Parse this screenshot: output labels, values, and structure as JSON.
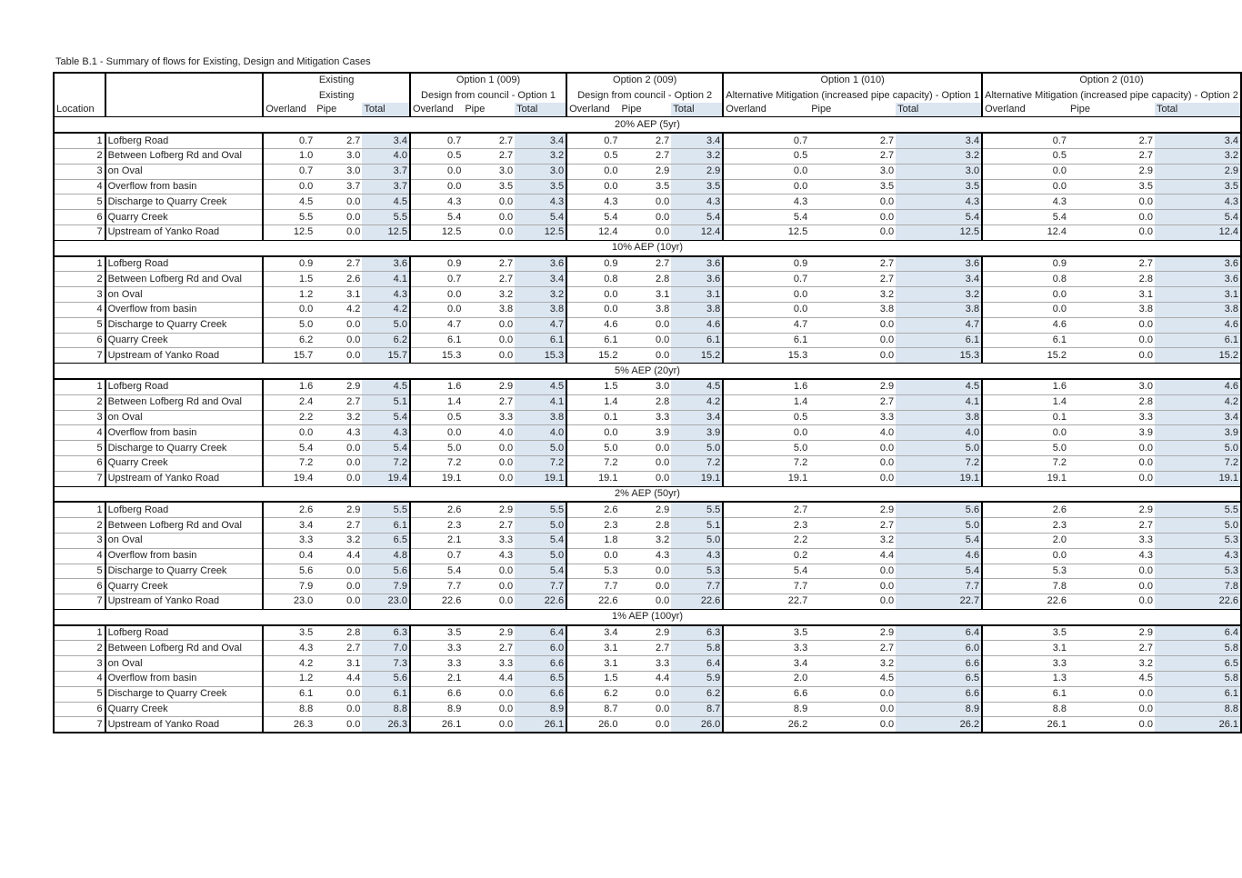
{
  "caption": "Table B.1 - Summary of flows for Existing, Design and Mitigation Cases",
  "header": {
    "location_label": "Location",
    "groups": [
      {
        "title": "Existing",
        "subtitle": "Existing"
      },
      {
        "title": "Option 1 (009)",
        "subtitle": "Design from council - Option 1"
      },
      {
        "title": "Option 2 (009)",
        "subtitle": "Design from council - Option 2"
      },
      {
        "title": "Option 1 (010)",
        "subtitle": "Alternative Mitigation (increased pipe capacity) - Option 1"
      },
      {
        "title": "Option 2 (010)",
        "subtitle": "Alternative Mitigation (increased pipe capacity) - Option 2"
      }
    ],
    "sub_columns": [
      "Overland",
      "Pipe",
      "Total"
    ]
  },
  "sections": [
    {
      "title": "20% AEP (5yr)",
      "rows": [
        {
          "id": "1",
          "name": "Lofberg Road",
          "values": [
            "0.7",
            "2.7",
            "3.4",
            "0.7",
            "2.7",
            "3.4",
            "0.7",
            "2.7",
            "3.4",
            "0.7",
            "2.7",
            "3.4",
            "0.7",
            "2.7",
            "3.4"
          ]
        },
        {
          "id": "2",
          "name": "Between Lofberg Rd and Oval",
          "values": [
            "1.0",
            "3.0",
            "4.0",
            "0.5",
            "2.7",
            "3.2",
            "0.5",
            "2.7",
            "3.2",
            "0.5",
            "2.7",
            "3.2",
            "0.5",
            "2.7",
            "3.2"
          ]
        },
        {
          "id": "3",
          "name": "on Oval",
          "values": [
            "0.7",
            "3.0",
            "3.7",
            "0.0",
            "3.0",
            "3.0",
            "0.0",
            "2.9",
            "2.9",
            "0.0",
            "3.0",
            "3.0",
            "0.0",
            "2.9",
            "2.9"
          ]
        },
        {
          "id": "4",
          "name": "Overflow from basin",
          "values": [
            "0.0",
            "3.7",
            "3.7",
            "0.0",
            "3.5",
            "3.5",
            "0.0",
            "3.5",
            "3.5",
            "0.0",
            "3.5",
            "3.5",
            "0.0",
            "3.5",
            "3.5"
          ]
        },
        {
          "id": "5",
          "name": "Discharge to Quarry Creek",
          "values": [
            "4.5",
            "0.0",
            "4.5",
            "4.3",
            "0.0",
            "4.3",
            "4.3",
            "0.0",
            "4.3",
            "4.3",
            "0.0",
            "4.3",
            "4.3",
            "0.0",
            "4.3"
          ]
        },
        {
          "id": "6",
          "name": "Quarry Creek",
          "values": [
            "5.5",
            "0.0",
            "5.5",
            "5.4",
            "0.0",
            "5.4",
            "5.4",
            "0.0",
            "5.4",
            "5.4",
            "0.0",
            "5.4",
            "5.4",
            "0.0",
            "5.4"
          ]
        },
        {
          "id": "7",
          "name": "Upstream of Yanko Road",
          "values": [
            "12.5",
            "0.0",
            "12.5",
            "12.5",
            "0.0",
            "12.5",
            "12.4",
            "0.0",
            "12.4",
            "12.5",
            "0.0",
            "12.5",
            "12.4",
            "0.0",
            "12.4"
          ]
        }
      ]
    },
    {
      "title": "10% AEP (10yr)",
      "rows": [
        {
          "id": "1",
          "name": "Lofberg Road",
          "values": [
            "0.9",
            "2.7",
            "3.6",
            "0.9",
            "2.7",
            "3.6",
            "0.9",
            "2.7",
            "3.6",
            "0.9",
            "2.7",
            "3.6",
            "0.9",
            "2.7",
            "3.6"
          ]
        },
        {
          "id": "2",
          "name": "Between Lofberg Rd and Oval",
          "values": [
            "1.5",
            "2.6",
            "4.1",
            "0.7",
            "2.7",
            "3.4",
            "0.8",
            "2.8",
            "3.6",
            "0.7",
            "2.7",
            "3.4",
            "0.8",
            "2.8",
            "3.6"
          ]
        },
        {
          "id": "3",
          "name": "on Oval",
          "values": [
            "1.2",
            "3.1",
            "4.3",
            "0.0",
            "3.2",
            "3.2",
            "0.0",
            "3.1",
            "3.1",
            "0.0",
            "3.2",
            "3.2",
            "0.0",
            "3.1",
            "3.1"
          ]
        },
        {
          "id": "4",
          "name": "Overflow from basin",
          "values": [
            "0.0",
            "4.2",
            "4.2",
            "0.0",
            "3.8",
            "3.8",
            "0.0",
            "3.8",
            "3.8",
            "0.0",
            "3.8",
            "3.8",
            "0.0",
            "3.8",
            "3.8"
          ]
        },
        {
          "id": "5",
          "name": "Discharge to Quarry Creek",
          "values": [
            "5.0",
            "0.0",
            "5.0",
            "4.7",
            "0.0",
            "4.7",
            "4.6",
            "0.0",
            "4.6",
            "4.7",
            "0.0",
            "4.7",
            "4.6",
            "0.0",
            "4.6"
          ]
        },
        {
          "id": "6",
          "name": "Quarry Creek",
          "values": [
            "6.2",
            "0.0",
            "6.2",
            "6.1",
            "0.0",
            "6.1",
            "6.1",
            "0.0",
            "6.1",
            "6.1",
            "0.0",
            "6.1",
            "6.1",
            "0.0",
            "6.1"
          ]
        },
        {
          "id": "7",
          "name": "Upstream of Yanko Road",
          "values": [
            "15.7",
            "0.0",
            "15.7",
            "15.3",
            "0.0",
            "15.3",
            "15.2",
            "0.0",
            "15.2",
            "15.3",
            "0.0",
            "15.3",
            "15.2",
            "0.0",
            "15.2"
          ]
        }
      ]
    },
    {
      "title": "5% AEP (20yr)",
      "rows": [
        {
          "id": "1",
          "name": "Lofberg Road",
          "values": [
            "1.6",
            "2.9",
            "4.5",
            "1.6",
            "2.9",
            "4.5",
            "1.5",
            "3.0",
            "4.5",
            "1.6",
            "2.9",
            "4.5",
            "1.6",
            "3.0",
            "4.6"
          ]
        },
        {
          "id": "2",
          "name": "Between Lofberg Rd and Oval",
          "values": [
            "2.4",
            "2.7",
            "5.1",
            "1.4",
            "2.7",
            "4.1",
            "1.4",
            "2.8",
            "4.2",
            "1.4",
            "2.7",
            "4.1",
            "1.4",
            "2.8",
            "4.2"
          ]
        },
        {
          "id": "3",
          "name": "on Oval",
          "values": [
            "2.2",
            "3.2",
            "5.4",
            "0.5",
            "3.3",
            "3.8",
            "0.1",
            "3.3",
            "3.4",
            "0.5",
            "3.3",
            "3.8",
            "0.1",
            "3.3",
            "3.4"
          ]
        },
        {
          "id": "4",
          "name": "Overflow from basin",
          "values": [
            "0.0",
            "4.3",
            "4.3",
            "0.0",
            "4.0",
            "4.0",
            "0.0",
            "3.9",
            "3.9",
            "0.0",
            "4.0",
            "4.0",
            "0.0",
            "3.9",
            "3.9"
          ]
        },
        {
          "id": "5",
          "name": "Discharge to Quarry Creek",
          "values": [
            "5.4",
            "0.0",
            "5.4",
            "5.0",
            "0.0",
            "5.0",
            "5.0",
            "0.0",
            "5.0",
            "5.0",
            "0.0",
            "5.0",
            "5.0",
            "0.0",
            "5.0"
          ]
        },
        {
          "id": "6",
          "name": "Quarry Creek",
          "values": [
            "7.2",
            "0.0",
            "7.2",
            "7.2",
            "0.0",
            "7.2",
            "7.2",
            "0.0",
            "7.2",
            "7.2",
            "0.0",
            "7.2",
            "7.2",
            "0.0",
            "7.2"
          ]
        },
        {
          "id": "7",
          "name": "Upstream of Yanko Road",
          "values": [
            "19.4",
            "0.0",
            "19.4",
            "19.1",
            "0.0",
            "19.1",
            "19.1",
            "0.0",
            "19.1",
            "19.1",
            "0.0",
            "19.1",
            "19.1",
            "0.0",
            "19.1"
          ]
        }
      ]
    },
    {
      "title": "2% AEP (50yr)",
      "rows": [
        {
          "id": "1",
          "name": "Lofberg Road",
          "values": [
            "2.6",
            "2.9",
            "5.5",
            "2.6",
            "2.9",
            "5.5",
            "2.6",
            "2.9",
            "5.5",
            "2.7",
            "2.9",
            "5.6",
            "2.6",
            "2.9",
            "5.5"
          ]
        },
        {
          "id": "2",
          "name": "Between Lofberg Rd and Oval",
          "values": [
            "3.4",
            "2.7",
            "6.1",
            "2.3",
            "2.7",
            "5.0",
            "2.3",
            "2.8",
            "5.1",
            "2.3",
            "2.7",
            "5.0",
            "2.3",
            "2.7",
            "5.0"
          ]
        },
        {
          "id": "3",
          "name": "on Oval",
          "values": [
            "3.3",
            "3.2",
            "6.5",
            "2.1",
            "3.3",
            "5.4",
            "1.8",
            "3.2",
            "5.0",
            "2.2",
            "3.2",
            "5.4",
            "2.0",
            "3.3",
            "5.3"
          ]
        },
        {
          "id": "4",
          "name": "Overflow from basin",
          "values": [
            "0.4",
            "4.4",
            "4.8",
            "0.7",
            "4.3",
            "5.0",
            "0.0",
            "4.3",
            "4.3",
            "0.2",
            "4.4",
            "4.6",
            "0.0",
            "4.3",
            "4.3"
          ]
        },
        {
          "id": "5",
          "name": "Discharge to Quarry Creek",
          "values": [
            "5.6",
            "0.0",
            "5.6",
            "5.4",
            "0.0",
            "5.4",
            "5.3",
            "0.0",
            "5.3",
            "5.4",
            "0.0",
            "5.4",
            "5.3",
            "0.0",
            "5.3"
          ]
        },
        {
          "id": "6",
          "name": "Quarry Creek",
          "values": [
            "7.9",
            "0.0",
            "7.9",
            "7.7",
            "0.0",
            "7.7",
            "7.7",
            "0.0",
            "7.7",
            "7.7",
            "0.0",
            "7.7",
            "7.8",
            "0.0",
            "7.8"
          ]
        },
        {
          "id": "7",
          "name": "Upstream of Yanko Road",
          "values": [
            "23.0",
            "0.0",
            "23.0",
            "22.6",
            "0.0",
            "22.6",
            "22.6",
            "0.0",
            "22.6",
            "22.7",
            "0.0",
            "22.7",
            "22.6",
            "0.0",
            "22.6"
          ]
        }
      ]
    },
    {
      "title": "1% AEP (100yr)",
      "rows": [
        {
          "id": "1",
          "name": "Lofberg Road",
          "values": [
            "3.5",
            "2.8",
            "6.3",
            "3.5",
            "2.9",
            "6.4",
            "3.4",
            "2.9",
            "6.3",
            "3.5",
            "2.9",
            "6.4",
            "3.5",
            "2.9",
            "6.4"
          ]
        },
        {
          "id": "2",
          "name": "Between Lofberg Rd and Oval",
          "values": [
            "4.3",
            "2.7",
            "7.0",
            "3.3",
            "2.7",
            "6.0",
            "3.1",
            "2.7",
            "5.8",
            "3.3",
            "2.7",
            "6.0",
            "3.1",
            "2.7",
            "5.8"
          ]
        },
        {
          "id": "3",
          "name": "on Oval",
          "values": [
            "4.2",
            "3.1",
            "7.3",
            "3.3",
            "3.3",
            "6.6",
            "3.1",
            "3.3",
            "6.4",
            "3.4",
            "3.2",
            "6.6",
            "3.3",
            "3.2",
            "6.5"
          ]
        },
        {
          "id": "4",
          "name": "Overflow from basin",
          "values": [
            "1.2",
            "4.4",
            "5.6",
            "2.1",
            "4.4",
            "6.5",
            "1.5",
            "4.4",
            "5.9",
            "2.0",
            "4.5",
            "6.5",
            "1.3",
            "4.5",
            "5.8"
          ]
        },
        {
          "id": "5",
          "name": "Discharge to Quarry Creek",
          "values": [
            "6.1",
            "0.0",
            "6.1",
            "6.6",
            "0.0",
            "6.6",
            "6.2",
            "0.0",
            "6.2",
            "6.6",
            "0.0",
            "6.6",
            "6.1",
            "0.0",
            "6.1"
          ]
        },
        {
          "id": "6",
          "name": "Quarry Creek",
          "values": [
            "8.8",
            "0.0",
            "8.8",
            "8.9",
            "0.0",
            "8.9",
            "8.7",
            "0.0",
            "8.7",
            "8.9",
            "0.0",
            "8.9",
            "8.8",
            "0.0",
            "8.8"
          ]
        },
        {
          "id": "7",
          "name": "Upstream of Yanko Road",
          "values": [
            "26.3",
            "0.0",
            "26.3",
            "26.1",
            "0.0",
            "26.1",
            "26.0",
            "0.0",
            "26.0",
            "26.2",
            "0.0",
            "26.2",
            "26.1",
            "0.0",
            "26.1"
          ]
        }
      ]
    }
  ]
}
